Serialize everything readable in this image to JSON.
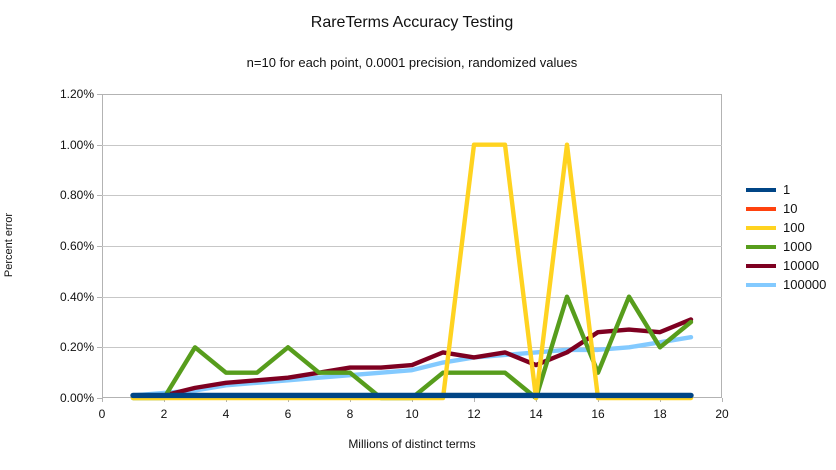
{
  "header": {
    "title": "RareTerms Accuracy Testing",
    "subtitle": "n=10 for each point, 0.0001 precision, randomized values"
  },
  "chart_data": {
    "type": "line",
    "title": "RareTerms Accuracy Testing",
    "subtitle": "n=10 for each point, 0.0001 precision, randomized values",
    "xlabel": "Millions of distinct terms",
    "ylabel": "Percent error",
    "xlim": [
      0,
      20
    ],
    "ylim": [
      0,
      1.2
    ],
    "y_unit": "percent",
    "grid": "horizontal",
    "legend_position": "right",
    "xticks": [
      0,
      2,
      4,
      6,
      8,
      10,
      12,
      14,
      16,
      18,
      20
    ],
    "yticks": [
      "0.00%",
      "0.20%",
      "0.40%",
      "0.60%",
      "0.80%",
      "1.00%",
      "1.20%"
    ],
    "x": [
      1,
      2,
      3,
      4,
      5,
      6,
      7,
      8,
      9,
      10,
      11,
      12,
      13,
      14,
      15,
      16,
      17,
      18,
      19
    ],
    "series": [
      {
        "name": "1",
        "color": "#004586",
        "values": [
          0.01,
          0.01,
          0.01,
          0.01,
          0.01,
          0.01,
          0.01,
          0.01,
          0.01,
          0.01,
          0.01,
          0.01,
          0.01,
          0.01,
          0.01,
          0.01,
          0.01,
          0.01,
          0.01
        ]
      },
      {
        "name": "10",
        "color": "#ff420e",
        "values": [
          0.01,
          0.01,
          0.01,
          0.01,
          0.01,
          0.01,
          0.01,
          0.01,
          0.01,
          0.01,
          0.01,
          0.01,
          0.01,
          0.01,
          0.01,
          0.01,
          0.01,
          0.01,
          0.01
        ]
      },
      {
        "name": "100",
        "color": "#ffd320",
        "values": [
          0,
          0,
          0,
          0,
          0,
          0,
          0,
          0,
          0,
          0,
          0,
          1.0,
          1.0,
          0,
          1.0,
          0,
          0,
          0,
          0
        ]
      },
      {
        "name": "1000",
        "color": "#579d1c",
        "values": [
          0,
          0,
          0.2,
          0.1,
          0.1,
          0.2,
          0.1,
          0.1,
          0,
          0,
          0.1,
          0.1,
          0.1,
          0,
          0.4,
          0.1,
          0.4,
          0.2,
          0.3
        ]
      },
      {
        "name": "10000",
        "color": "#7e0021",
        "values": [
          0.01,
          0.01,
          0.04,
          0.06,
          0.07,
          0.08,
          0.1,
          0.12,
          0.12,
          0.13,
          0.18,
          0.16,
          0.18,
          0.13,
          0.18,
          0.26,
          0.27,
          0.26,
          0.31
        ]
      },
      {
        "name": "100000",
        "color": "#83caff",
        "values": [
          0.01,
          0.02,
          0.03,
          0.05,
          0.06,
          0.07,
          0.08,
          0.09,
          0.1,
          0.11,
          0.14,
          0.16,
          0.17,
          0.18,
          0.19,
          0.19,
          0.2,
          0.22,
          0.24
        ]
      }
    ]
  }
}
